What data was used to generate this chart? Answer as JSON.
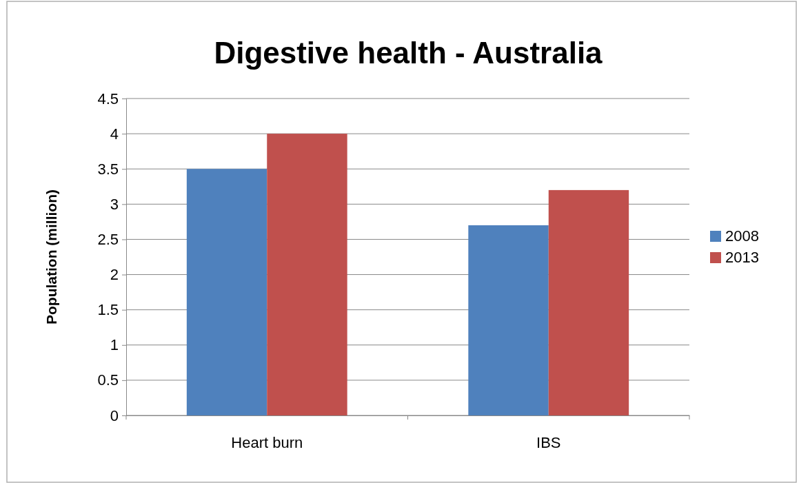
{
  "chart_data": {
    "type": "bar",
    "title": "Digestive health - Australia",
    "ylabel": "Population (million)",
    "categories": [
      "Heart burn",
      "IBS"
    ],
    "series": [
      {
        "name": "2008",
        "color": "#4f81bd",
        "values": [
          3.5,
          2.7
        ]
      },
      {
        "name": "2013",
        "color": "#c0504d",
        "values": [
          4,
          3.2
        ]
      }
    ],
    "ylim": [
      0,
      4.5
    ],
    "yticks": [
      0,
      0.5,
      1,
      1.5,
      2,
      2.5,
      3,
      3.5,
      4,
      4.5
    ],
    "grid": "y",
    "legend": "right"
  }
}
